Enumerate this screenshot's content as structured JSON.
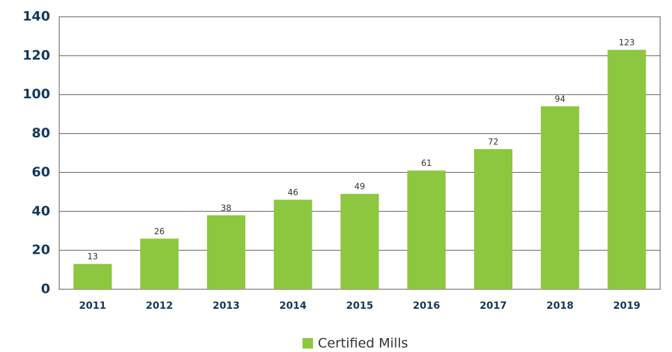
{
  "chart_data": {
    "type": "bar",
    "categories": [
      "2011",
      "2012",
      "2013",
      "2014",
      "2015",
      "2016",
      "2017",
      "2018",
      "2019"
    ],
    "series": [
      {
        "name": "Certified Mills",
        "color": "#8dc63f",
        "values": [
          13,
          26,
          38,
          46,
          49,
          61,
          72,
          94,
          123
        ]
      }
    ],
    "ylim": [
      0,
      140
    ],
    "yticks": [
      0,
      20,
      40,
      60,
      80,
      100,
      120,
      140
    ],
    "grid": true,
    "legend": "bottom"
  }
}
